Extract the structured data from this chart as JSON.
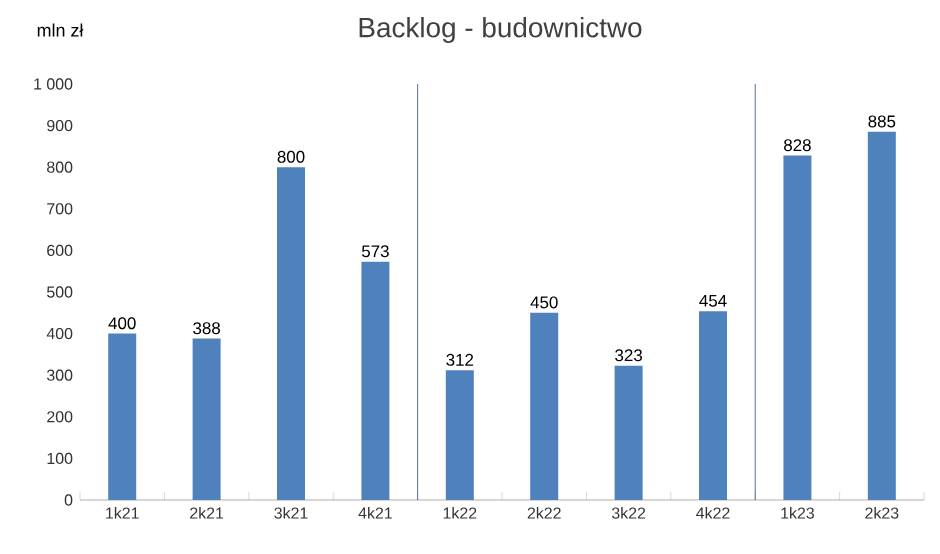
{
  "chart_data": {
    "type": "bar",
    "title": "Backlog - budownictwo",
    "ylabel": "mln zł",
    "categories": [
      "1k21",
      "2k21",
      "3k21",
      "4k21",
      "1k22",
      "2k22",
      "3k22",
      "4k22",
      "1k23",
      "2k23"
    ],
    "values": [
      400,
      388,
      800,
      573,
      312,
      450,
      323,
      454,
      828,
      885
    ],
    "color": "#4f81bd",
    "data_labels": true,
    "grid": false,
    "ylim": [
      0,
      1000
    ],
    "yticks": [
      0,
      100,
      200,
      300,
      400,
      500,
      600,
      700,
      800,
      900,
      {
        "value": 1000,
        "label": "1 000"
      }
    ]
  }
}
